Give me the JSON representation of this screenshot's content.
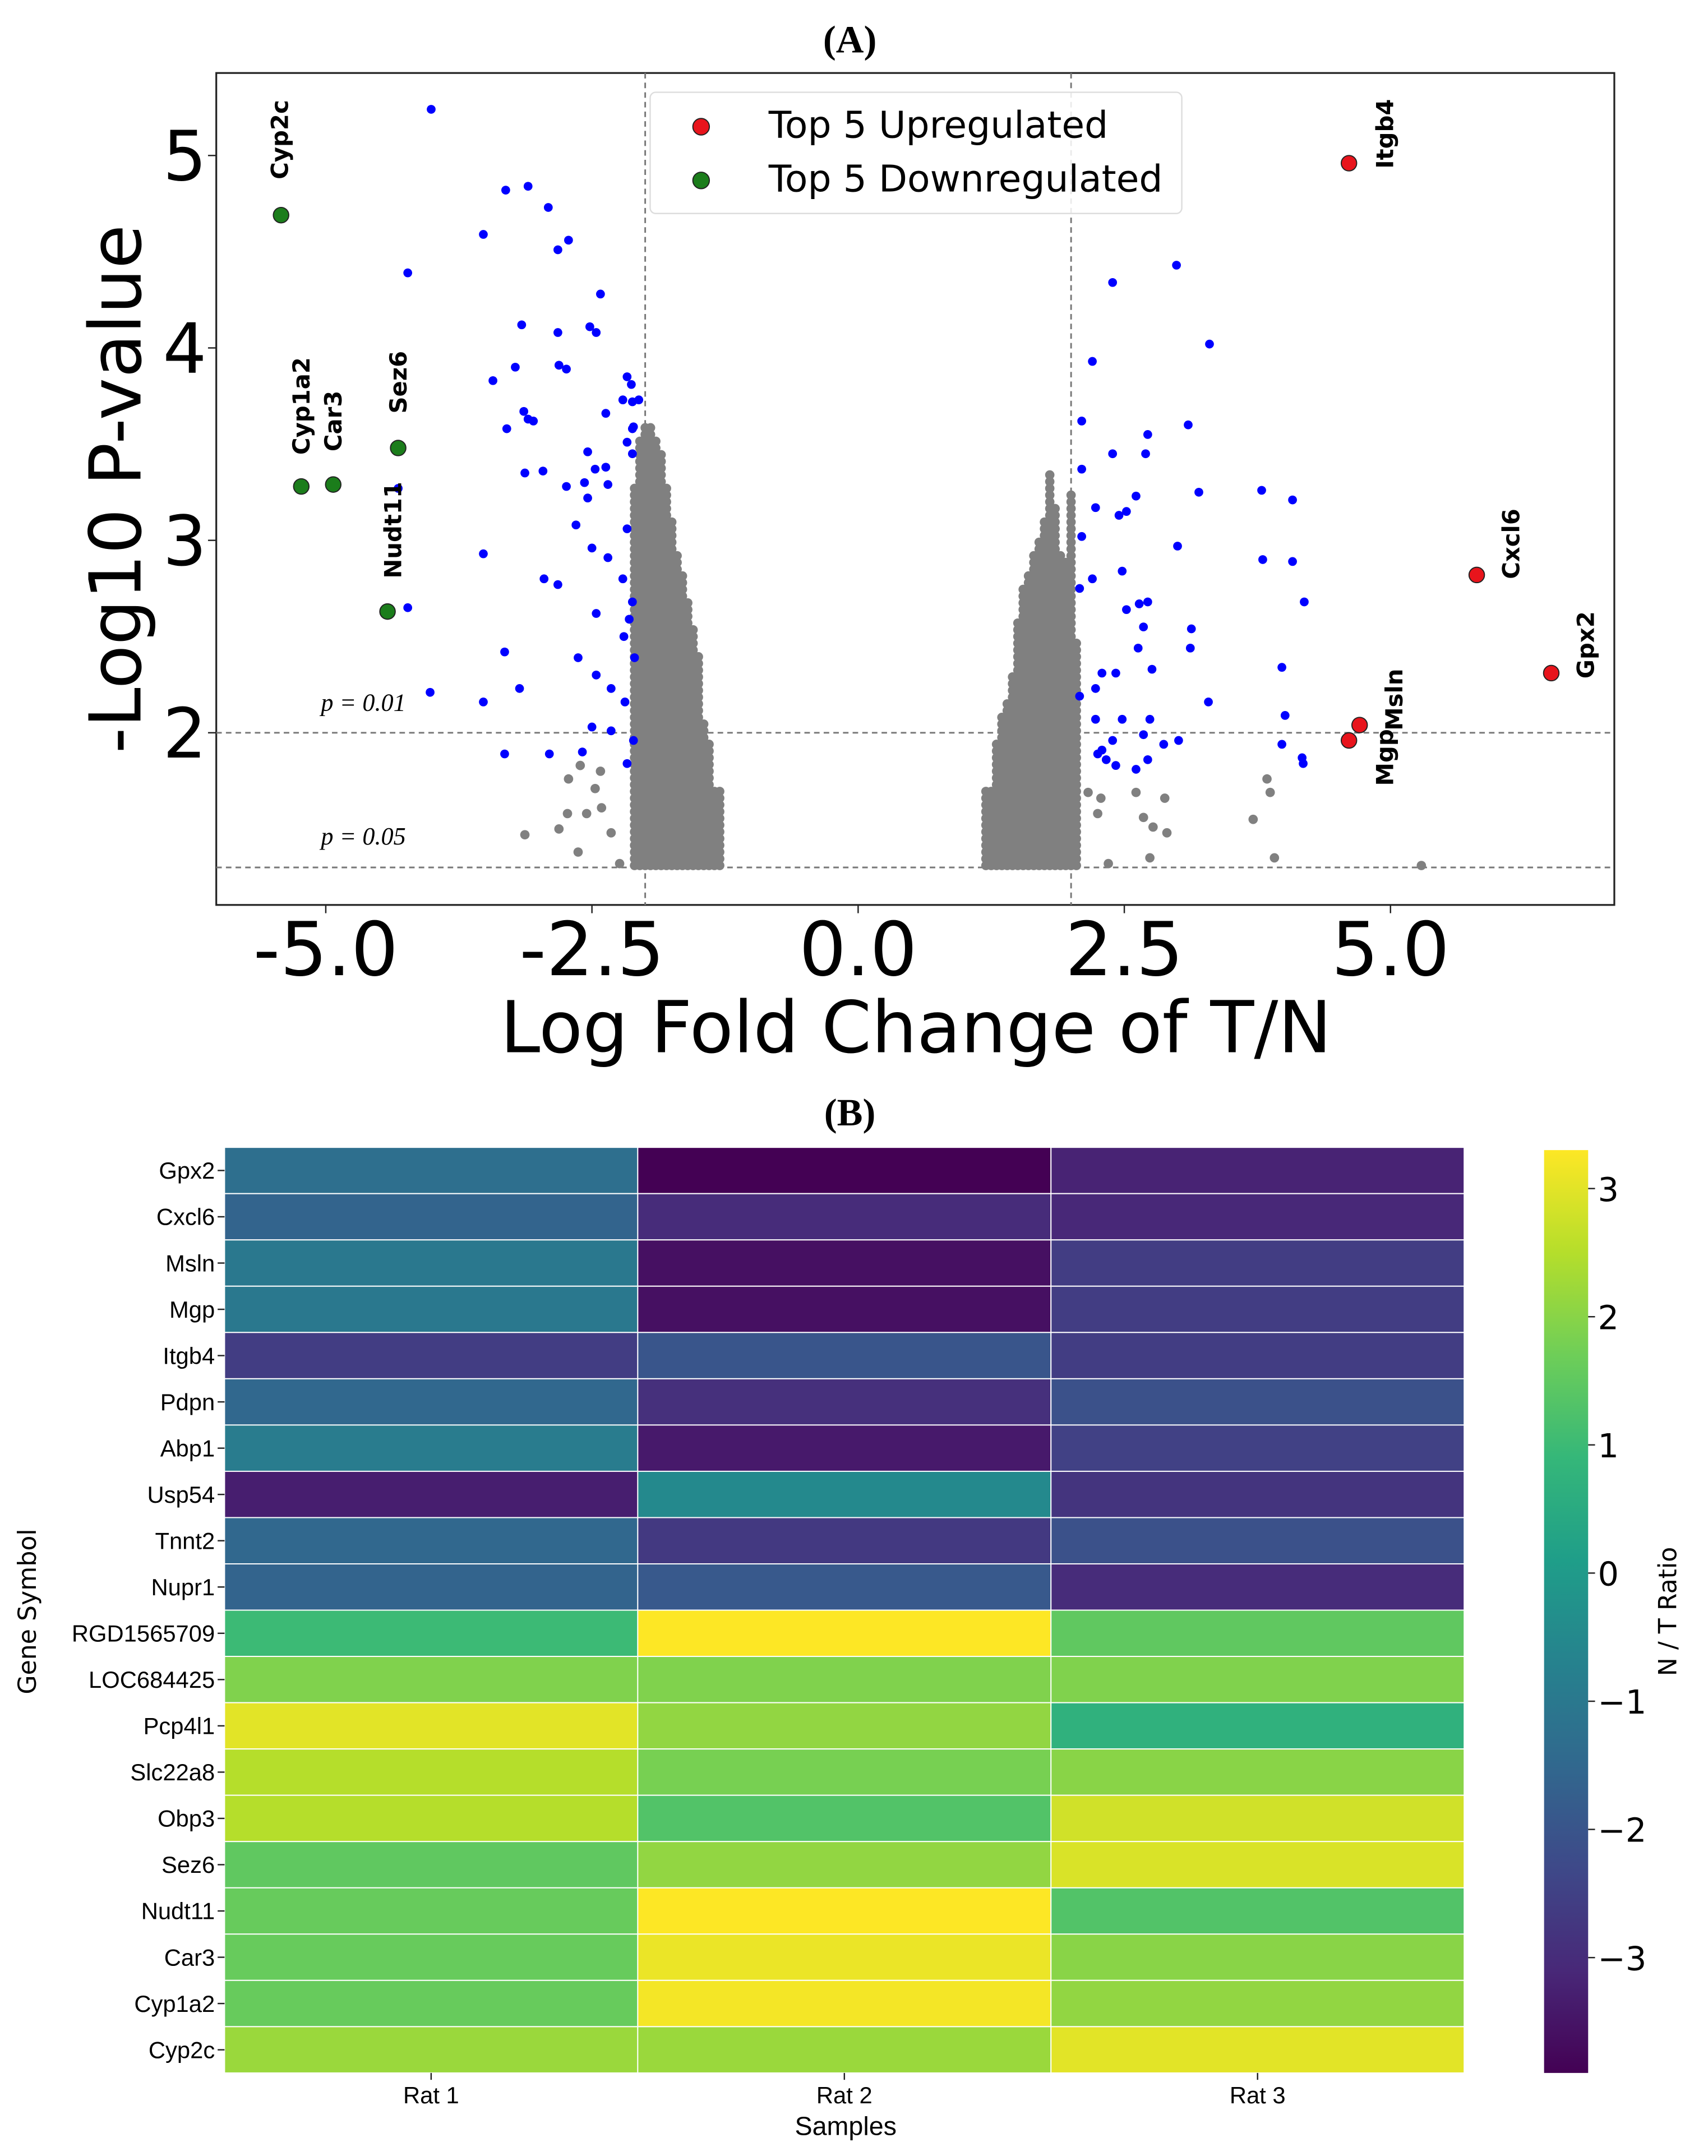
{
  "panel_labels": {
    "a": "(A)",
    "b": "(B)"
  },
  "chart_data": [
    {
      "type": "scatter",
      "title": "",
      "xlabel": "Log Fold Change of T/N",
      "ylabel": "-Log10 P-value",
      "xlim": [
        -6.03,
        7.1
      ],
      "ylim": [
        1.11,
        5.43
      ],
      "xticks": [
        "-5.0",
        "-2.5",
        "0.0",
        "2.5",
        "5.0"
      ],
      "xtick_values": [
        -5,
        -2.5,
        0,
        2.5,
        5
      ],
      "yticks": [
        "2",
        "3",
        "4",
        "5"
      ],
      "ytick_values": [
        2,
        3,
        4,
        5
      ],
      "grid": false,
      "thresholds": {
        "fold_change": [
          -2,
          2
        ],
        "pvalue_lines": [
          {
            "y": 2,
            "label": "p = 0.01"
          },
          {
            "y": 1.3,
            "label": "p = 0.05"
          }
        ]
      },
      "legend": {
        "position": "top-center",
        "entries": [
          {
            "label": "Top 5 Upregulated",
            "color": "#e8141c"
          },
          {
            "label": "Top 5 Downregulated",
            "color": "#1b7d1b"
          }
        ]
      },
      "colors": {
        "significant": "#0000ff",
        "nonsignificant": "#808080",
        "up": "#e8141c",
        "down": "#1b7d1b"
      },
      "top_up": [
        {
          "gene": "Itgb4",
          "x": 4.61,
          "y": 4.96
        },
        {
          "gene": "Cxcl6",
          "x": 5.81,
          "y": 2.82
        },
        {
          "gene": "Gpx2",
          "x": 6.51,
          "y": 2.31
        },
        {
          "gene": "Msln",
          "x": 4.71,
          "y": 2.04
        },
        {
          "gene": "Mgp",
          "x": 4.61,
          "y": 1.96
        }
      ],
      "top_down": [
        {
          "gene": "Cyp2c",
          "x": -5.42,
          "y": 4.69
        },
        {
          "gene": "Cyp1a2",
          "x": -5.23,
          "y": 3.28
        },
        {
          "gene": "Car3",
          "x": -4.93,
          "y": 3.29
        },
        {
          "gene": "Sez6",
          "x": -4.32,
          "y": 3.48
        },
        {
          "gene": "Nudt11",
          "x": -4.42,
          "y": 2.63
        }
      ],
      "significant_points": [
        [
          -4.01,
          5.24
        ],
        [
          -3.31,
          4.82
        ],
        [
          -3.1,
          4.84
        ],
        [
          -3.52,
          4.59
        ],
        [
          -2.91,
          4.73
        ],
        [
          -2.72,
          4.56
        ],
        [
          -2.82,
          4.51
        ],
        [
          -4.23,
          4.39
        ],
        [
          -2.42,
          4.28
        ],
        [
          -3.16,
          4.12
        ],
        [
          -2.82,
          4.08
        ],
        [
          -2.52,
          4.11
        ],
        [
          -2.46,
          4.08
        ],
        [
          -3.43,
          3.83
        ],
        [
          -3.22,
          3.9
        ],
        [
          -2.81,
          3.91
        ],
        [
          -2.74,
          3.89
        ],
        [
          -3.05,
          3.62
        ],
        [
          -2.17,
          3.85
        ],
        [
          -2.13,
          3.81
        ],
        [
          -2.21,
          3.73
        ],
        [
          -2.12,
          3.72
        ],
        [
          -3.3,
          3.58
        ],
        [
          -3.14,
          3.67
        ],
        [
          -3.1,
          3.63
        ],
        [
          -2.96,
          3.36
        ],
        [
          -2.54,
          3.46
        ],
        [
          -2.47,
          3.37
        ],
        [
          -2.37,
          3.38
        ],
        [
          -2.17,
          3.51
        ],
        [
          -2.12,
          3.58
        ],
        [
          -2.12,
          3.45
        ],
        [
          -2.57,
          3.3
        ],
        [
          -3.13,
          3.35
        ],
        [
          -2.74,
          3.28
        ],
        [
          -2.65,
          3.08
        ],
        [
          -2.54,
          3.22
        ],
        [
          -2.35,
          3.29
        ],
        [
          -2.5,
          2.96
        ],
        [
          -2.17,
          3.06
        ],
        [
          -3.52,
          2.93
        ],
        [
          -2.95,
          2.8
        ],
        [
          -2.82,
          2.77
        ],
        [
          -2.35,
          2.91
        ],
        [
          -2.21,
          2.8
        ],
        [
          -2.12,
          2.68
        ],
        [
          -2.46,
          2.62
        ],
        [
          -2.15,
          2.59
        ],
        [
          -4.23,
          2.65
        ],
        [
          -2.2,
          2.5
        ],
        [
          -2.1,
          2.39
        ],
        [
          -3.32,
          2.42
        ],
        [
          -3.18,
          2.23
        ],
        [
          -2.63,
          2.39
        ],
        [
          -2.46,
          2.3
        ],
        [
          -2.32,
          2.23
        ],
        [
          -3.52,
          2.16
        ],
        [
          -4.02,
          2.21
        ],
        [
          -2.9,
          1.89
        ],
        [
          -2.59,
          1.9
        ],
        [
          -2.17,
          1.84
        ],
        [
          -2.5,
          2.03
        ],
        [
          -2.32,
          2.01
        ],
        [
          -2.19,
          2.16
        ],
        [
          -3.32,
          1.89
        ],
        [
          -2.11,
          1.96
        ],
        [
          -4.32,
          3.27
        ],
        [
          -2.11,
          3.59
        ],
        [
          -2.37,
          3.66
        ],
        [
          -2.06,
          3.73
        ],
        [
          2.39,
          4.34
        ],
        [
          2.2,
          3.93
        ],
        [
          2.99,
          4.43
        ],
        [
          3.3,
          4.02
        ],
        [
          3.1,
          3.6
        ],
        [
          2.72,
          3.55
        ],
        [
          2.1,
          3.62
        ],
        [
          2.39,
          3.45
        ],
        [
          2.7,
          3.45
        ],
        [
          2.1,
          3.37
        ],
        [
          2.61,
          3.23
        ],
        [
          2.23,
          3.17
        ],
        [
          2.45,
          3.13
        ],
        [
          2.52,
          3.15
        ],
        [
          3.2,
          3.25
        ],
        [
          3.79,
          3.26
        ],
        [
          4.08,
          3.21
        ],
        [
          2.1,
          3.02
        ],
        [
          3.0,
          2.97
        ],
        [
          2.2,
          2.8
        ],
        [
          2.48,
          2.84
        ],
        [
          3.8,
          2.9
        ],
        [
          4.08,
          2.89
        ],
        [
          4.19,
          2.68
        ],
        [
          2.08,
          2.75
        ],
        [
          2.52,
          2.64
        ],
        [
          2.64,
          2.67
        ],
        [
          2.72,
          2.68
        ],
        [
          2.68,
          2.55
        ],
        [
          3.13,
          2.54
        ],
        [
          3.12,
          2.44
        ],
        [
          2.29,
          2.31
        ],
        [
          2.42,
          2.31
        ],
        [
          2.63,
          2.44
        ],
        [
          2.76,
          2.33
        ],
        [
          3.29,
          2.16
        ],
        [
          2.08,
          2.19
        ],
        [
          2.23,
          2.23
        ],
        [
          2.48,
          2.07
        ],
        [
          2.74,
          2.07
        ],
        [
          2.23,
          2.07
        ],
        [
          2.29,
          1.91
        ],
        [
          2.39,
          1.96
        ],
        [
          2.68,
          1.99
        ],
        [
          2.87,
          1.94
        ],
        [
          3.01,
          1.96
        ],
        [
          2.42,
          1.83
        ],
        [
          2.72,
          1.86
        ],
        [
          2.33,
          1.86
        ],
        [
          3.98,
          1.94
        ],
        [
          4.17,
          1.87
        ],
        [
          4.18,
          1.84
        ],
        [
          4.01,
          2.09
        ],
        [
          3.98,
          2.34
        ],
        [
          2.25,
          1.89
        ],
        [
          2.61,
          1.81
        ]
      ],
      "nonsignificant_points": [
        [
          -3.13,
          1.47
        ],
        [
          -2.81,
          1.5
        ],
        [
          -2.63,
          1.38
        ],
        [
          -2.73,
          1.58
        ],
        [
          -2.72,
          1.76
        ],
        [
          -2.47,
          1.71
        ],
        [
          -2.42,
          1.8
        ],
        [
          -2.55,
          1.58
        ],
        [
          -2.32,
          1.48
        ],
        [
          -2.24,
          1.32
        ],
        [
          -2.61,
          1.83
        ],
        [
          -2.41,
          1.61
        ],
        [
          2.28,
          1.66
        ],
        [
          2.35,
          1.32
        ],
        [
          2.16,
          1.69
        ],
        [
          2.25,
          1.58
        ],
        [
          2.61,
          1.69
        ],
        [
          2.68,
          1.56
        ],
        [
          2.88,
          1.66
        ],
        [
          2.9,
          1.48
        ],
        [
          2.77,
          1.51
        ],
        [
          3.84,
          1.76
        ],
        [
          3.87,
          1.69
        ],
        [
          3.71,
          1.55
        ],
        [
          3.91,
          1.35
        ],
        [
          5.29,
          1.31
        ],
        [
          2.74,
          1.35
        ]
      ],
      "nonsignificant_columns": {
        "y_min": 1.31,
        "y_step": 0.035,
        "columns": [
          [
            -2.1,
            3.3
          ],
          [
            -2.05,
            3.55
          ],
          [
            -2.0,
            3.62
          ],
          [
            -1.95,
            3.6
          ],
          [
            -1.9,
            3.55
          ],
          [
            -1.85,
            3.45
          ],
          [
            -1.8,
            3.3
          ],
          [
            -1.75,
            3.1
          ],
          [
            -1.7,
            2.95
          ],
          [
            -1.65,
            2.85
          ],
          [
            -1.6,
            2.7
          ],
          [
            -1.55,
            2.55
          ],
          [
            -1.5,
            2.4
          ],
          [
            -1.45,
            2.05
          ],
          [
            -1.4,
            1.95
          ],
          [
            -1.35,
            1.7
          ],
          [
            -1.3,
            1.7
          ],
          [
            1.2,
            1.7
          ],
          [
            1.25,
            1.72
          ],
          [
            1.3,
            1.95
          ],
          [
            1.35,
            2.1
          ],
          [
            1.4,
            2.15
          ],
          [
            1.45,
            2.3
          ],
          [
            1.5,
            2.6
          ],
          [
            1.55,
            2.75
          ],
          [
            1.6,
            2.85
          ],
          [
            1.65,
            2.95
          ],
          [
            1.7,
            3.0
          ],
          [
            1.75,
            3.1
          ],
          [
            1.8,
            3.35
          ],
          [
            1.85,
            3.2
          ],
          [
            1.9,
            2.95
          ],
          [
            1.95,
            2.9
          ],
          [
            2.0,
            3.25
          ],
          [
            2.05,
            2.5
          ]
        ]
      }
    },
    {
      "type": "heatmap",
      "xlabel": "Samples",
      "ylabel": "Gene Symbol",
      "colorbar_label": "N / T Ratio",
      "colorbar_range": [
        -3.9,
        3.3
      ],
      "colorbar_ticks": [
        "3",
        "2",
        "1",
        "0",
        "−1",
        "−2",
        "−3"
      ],
      "colorbar_tick_values": [
        3,
        2,
        1,
        0,
        -1,
        -2,
        -3
      ],
      "colormap": [
        "#440154",
        "#482878",
        "#3e4989",
        "#31688e",
        "#26828e",
        "#1f9e89",
        "#35b779",
        "#6ece58",
        "#b5de2b",
        "#fde725"
      ],
      "columns": [
        "Rat 1",
        "Rat 2",
        "Rat 3"
      ],
      "rows": [
        "Gpx2",
        "Cxcl6",
        "Msln",
        "Mgp",
        "Itgb4",
        "Pdpn",
        "Abp1",
        "Usp54",
        "Tnnt2",
        "Nupr1",
        "RGD1565709",
        "LOC684425",
        "Pcp4l1",
        "Slc22a8",
        "Obp3",
        "Sez6",
        "Nudt11",
        "Car3",
        "Cyp1a2",
        "Cyp2c"
      ],
      "values": [
        [
          -1.3,
          -3.9,
          -3.2
        ],
        [
          -1.6,
          -3.0,
          -3.1
        ],
        [
          -1.0,
          -3.6,
          -2.6
        ],
        [
          -1.0,
          -3.6,
          -2.6
        ],
        [
          -2.6,
          -2.0,
          -2.6
        ],
        [
          -1.5,
          -2.9,
          -2.1
        ],
        [
          -0.9,
          -3.4,
          -2.5
        ],
        [
          -3.3,
          -0.5,
          -2.8
        ],
        [
          -1.5,
          -2.7,
          -2.1
        ],
        [
          -1.6,
          -1.9,
          -3.0
        ],
        [
          1.0,
          3.3,
          1.5
        ],
        [
          1.9,
          1.9,
          1.9
        ],
        [
          3.0,
          2.1,
          0.7
        ],
        [
          2.5,
          1.8,
          2.0
        ],
        [
          2.5,
          1.3,
          2.8
        ],
        [
          1.5,
          2.1,
          2.9
        ],
        [
          1.6,
          3.3,
          1.3
        ],
        [
          1.6,
          3.1,
          2.0
        ],
        [
          1.6,
          3.2,
          2.1
        ],
        [
          2.2,
          2.2,
          3.0
        ]
      ]
    }
  ]
}
